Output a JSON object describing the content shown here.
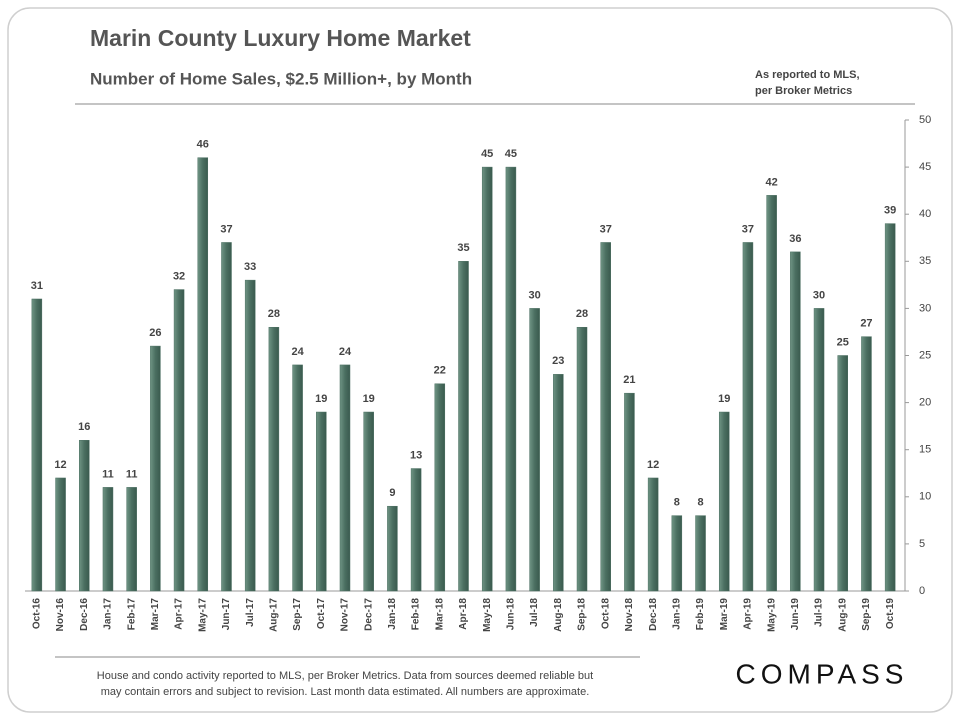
{
  "chart_data": {
    "type": "bar",
    "title": "Marin County Luxury Home Market",
    "subtitle": "Number of Home Sales, $2.5 Million+, by Month",
    "source_note": [
      "As reported to MLS,",
      "per Broker Metrics"
    ],
    "footnote": [
      "House and condo activity reported to MLS, per Broker Metrics. Data from sources deemed reliable but",
      "may contain errors and subject to revision. Last month data estimated. All numbers are approximate."
    ],
    "logo": "COMPASS",
    "categories": [
      "Oct-16",
      "Nov-16",
      "Dec-16",
      "Jan-17",
      "Feb-17",
      "Mar-17",
      "Apr-17",
      "May-17",
      "Jun-17",
      "Jul-17",
      "Aug-17",
      "Sep-17",
      "Oct-17",
      "Nov-17",
      "Dec-17",
      "Jan-18",
      "Feb-18",
      "Mar-18",
      "Apr-18",
      "May-18",
      "Jun-18",
      "Jul-18",
      "Aug-18",
      "Sep-18",
      "Oct-18",
      "Nov-18",
      "Dec-18",
      "Jan-19",
      "Feb-19",
      "Mar-19",
      "Apr-19",
      "May-19",
      "Jun-19",
      "Jul-19",
      "Aug-19",
      "Sep-19",
      "Oct-19"
    ],
    "values": [
      31,
      12,
      16,
      11,
      11,
      26,
      32,
      46,
      37,
      33,
      28,
      24,
      19,
      24,
      19,
      9,
      13,
      22,
      35,
      45,
      45,
      30,
      23,
      28,
      37,
      21,
      12,
      8,
      8,
      19,
      37,
      42,
      36,
      30,
      25,
      27,
      39
    ],
    "color": "#4b6f61",
    "ylim": [
      0,
      50
    ],
    "yticks": [
      0,
      5,
      10,
      15,
      20,
      25,
      30,
      35,
      40,
      45,
      50
    ],
    "y_axis_side": "right",
    "grid": false
  }
}
